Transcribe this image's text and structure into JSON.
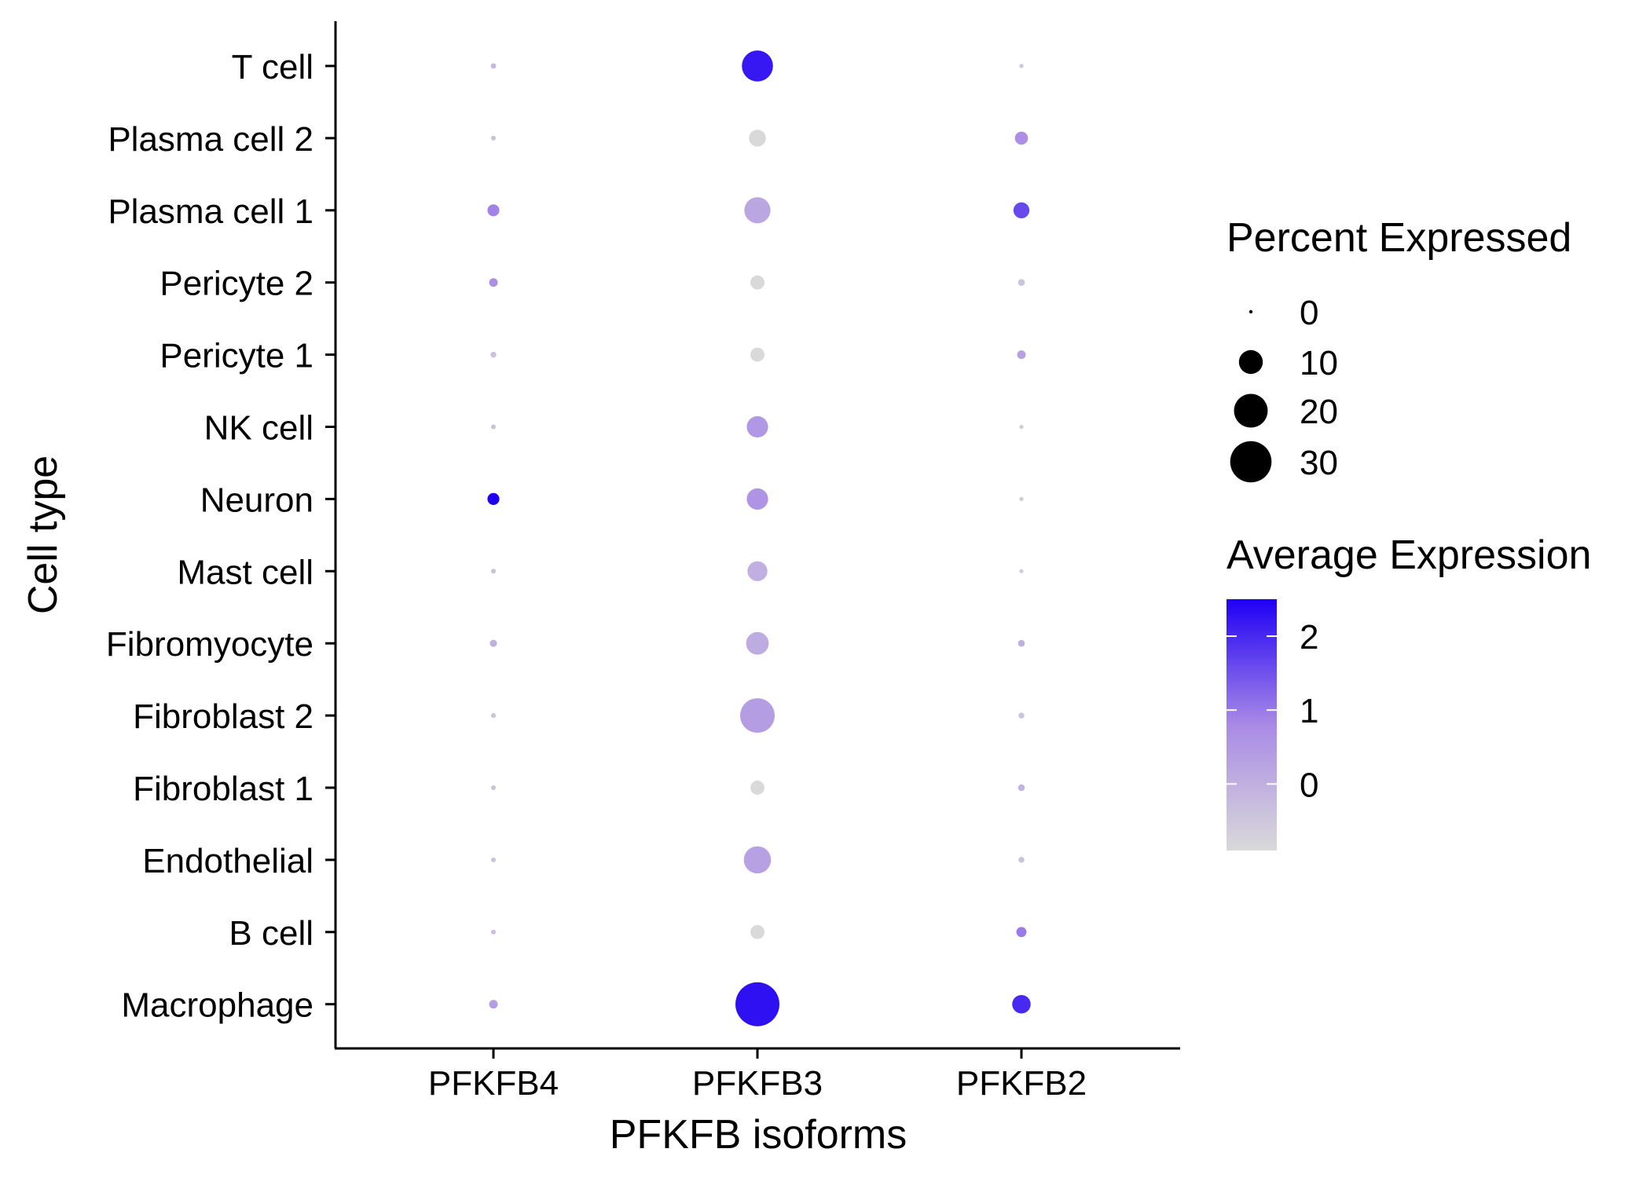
{
  "chart_data": {
    "type": "dotplot",
    "xlabel": "PFKFB isoforms",
    "ylabel": "Cell type",
    "categories_x": [
      "PFKFB4",
      "PFKFB3",
      "PFKFB2"
    ],
    "categories_y": [
      "T cell",
      "Plasma cell 2",
      "Plasma cell 1",
      "Pericyte 2",
      "Pericyte 1",
      "NK cell",
      "Neuron",
      "Mast cell",
      "Fibromyocyte",
      "Fibroblast 2",
      "Fibroblast 1",
      "Endothelial",
      "B cell",
      "Macrophage"
    ],
    "points": [
      {
        "x": "PFKFB4",
        "y": "T cell",
        "pct": 0.5,
        "avg": -0.2
      },
      {
        "x": "PFKFB3",
        "y": "T cell",
        "pct": 17,
        "avg": 2.2
      },
      {
        "x": "PFKFB2",
        "y": "T cell",
        "pct": 0.3,
        "avg": -0.5
      },
      {
        "x": "PFKFB4",
        "y": "Plasma cell 2",
        "pct": 0.4,
        "avg": -0.4
      },
      {
        "x": "PFKFB3",
        "y": "Plasma cell 2",
        "pct": 5,
        "avg": -0.9
      },
      {
        "x": "PFKFB2",
        "y": "Plasma cell 2",
        "pct": 3,
        "avg": 0.7
      },
      {
        "x": "PFKFB4",
        "y": "Plasma cell 1",
        "pct": 2.5,
        "avg": 0.9
      },
      {
        "x": "PFKFB3",
        "y": "Plasma cell 1",
        "pct": 12,
        "avg": 0.2
      },
      {
        "x": "PFKFB2",
        "y": "Plasma cell 1",
        "pct": 4.5,
        "avg": 1.6
      },
      {
        "x": "PFKFB4",
        "y": "Pericyte 2",
        "pct": 1.3,
        "avg": 0.7
      },
      {
        "x": "PFKFB3",
        "y": "Pericyte 2",
        "pct": 3.5,
        "avg": -0.9
      },
      {
        "x": "PFKFB2",
        "y": "Pericyte 2",
        "pct": 0.8,
        "avg": -0.4
      },
      {
        "x": "PFKFB4",
        "y": "Pericyte 1",
        "pct": 0.6,
        "avg": -0.4
      },
      {
        "x": "PFKFB3",
        "y": "Pericyte 1",
        "pct": 3.5,
        "avg": -0.9
      },
      {
        "x": "PFKFB2",
        "y": "Pericyte 1",
        "pct": 1.3,
        "avg": 0.3
      },
      {
        "x": "PFKFB4",
        "y": "NK cell",
        "pct": 0.4,
        "avg": -0.4
      },
      {
        "x": "PFKFB3",
        "y": "NK cell",
        "pct": 8,
        "avg": 0.5
      },
      {
        "x": "PFKFB2",
        "y": "NK cell",
        "pct": 0.3,
        "avg": -0.6
      },
      {
        "x": "PFKFB4",
        "y": "Neuron",
        "pct": 2.5,
        "avg": 2.5
      },
      {
        "x": "PFKFB3",
        "y": "Neuron",
        "pct": 8,
        "avg": 0.6
      },
      {
        "x": "PFKFB2",
        "y": "Neuron",
        "pct": 0.3,
        "avg": -0.6
      },
      {
        "x": "PFKFB4",
        "y": "Mast cell",
        "pct": 0.4,
        "avg": -0.4
      },
      {
        "x": "PFKFB3",
        "y": "Mast cell",
        "pct": 7,
        "avg": 0.0
      },
      {
        "x": "PFKFB2",
        "y": "Mast cell",
        "pct": 0.3,
        "avg": -0.6
      },
      {
        "x": "PFKFB4",
        "y": "Fibromyocyte",
        "pct": 0.9,
        "avg": 0.0
      },
      {
        "x": "PFKFB3",
        "y": "Fibromyocyte",
        "pct": 9,
        "avg": 0.1
      },
      {
        "x": "PFKFB2",
        "y": "Fibromyocyte",
        "pct": 0.8,
        "avg": 0.0
      },
      {
        "x": "PFKFB4",
        "y": "Fibroblast 2",
        "pct": 0.4,
        "avg": -0.4
      },
      {
        "x": "PFKFB3",
        "y": "Fibroblast 2",
        "pct": 21,
        "avg": 0.4
      },
      {
        "x": "PFKFB2",
        "y": "Fibroblast 2",
        "pct": 0.6,
        "avg": -0.4
      },
      {
        "x": "PFKFB4",
        "y": "Fibroblast 1",
        "pct": 0.4,
        "avg": -0.4
      },
      {
        "x": "PFKFB3",
        "y": "Fibroblast 1",
        "pct": 3.5,
        "avg": -0.9
      },
      {
        "x": "PFKFB2",
        "y": "Fibroblast 1",
        "pct": 0.8,
        "avg": -0.1
      },
      {
        "x": "PFKFB4",
        "y": "Endothelial",
        "pct": 0.4,
        "avg": -0.4
      },
      {
        "x": "PFKFB3",
        "y": "Endothelial",
        "pct": 13,
        "avg": 0.3
      },
      {
        "x": "PFKFB2",
        "y": "Endothelial",
        "pct": 0.6,
        "avg": -0.4
      },
      {
        "x": "PFKFB4",
        "y": "B cell",
        "pct": 0.4,
        "avg": -0.4
      },
      {
        "x": "PFKFB3",
        "y": "B cell",
        "pct": 3.5,
        "avg": -0.9
      },
      {
        "x": "PFKFB2",
        "y": "B cell",
        "pct": 1.8,
        "avg": 1.0
      },
      {
        "x": "PFKFB4",
        "y": "Macrophage",
        "pct": 1.3,
        "avg": 0.4
      },
      {
        "x": "PFKFB3",
        "y": "Macrophage",
        "pct": 34,
        "avg": 2.3
      },
      {
        "x": "PFKFB2",
        "y": "Macrophage",
        "pct": 6,
        "avg": 2.0
      }
    ],
    "size_legend": {
      "title": "Percent Expressed",
      "values": [
        0,
        10,
        20,
        30
      ],
      "labels": [
        "0",
        "10",
        "20",
        "30"
      ]
    },
    "color_legend": {
      "title": "Average Expression",
      "min": -0.9,
      "max": 2.5,
      "ticks": [
        2,
        1,
        0
      ],
      "labels": [
        "2",
        "1",
        "0"
      ],
      "low_color": "#d9d9d9",
      "mid_color": "#a98ae6",
      "high_color": "#1f00f5"
    },
    "grid": false
  }
}
